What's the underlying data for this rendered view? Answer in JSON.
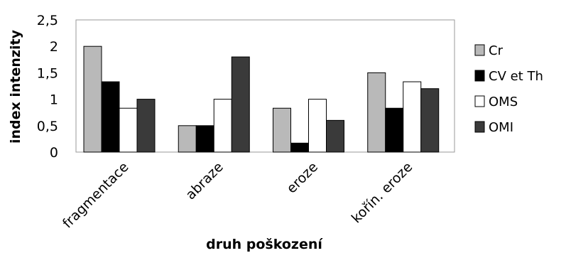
{
  "chart_data": {
    "type": "bar",
    "title": "",
    "xlabel": "druh poškození",
    "ylabel": "index intenzity",
    "ylim": [
      0,
      2.5
    ],
    "yticks": [
      "0",
      "0,5",
      "1",
      "1,5",
      "2",
      "2,5"
    ],
    "categories": [
      "fragmentace",
      "abraze",
      "eroze",
      "kořín. eroze"
    ],
    "series": [
      {
        "name": "Cr",
        "values": [
          2.0,
          0.5,
          0.83,
          1.5
        ],
        "color": "#b9b9b9"
      },
      {
        "name": "CV et Th",
        "values": [
          1.33,
          0.5,
          0.17,
          0.83
        ],
        "color": "#000000"
      },
      {
        "name": "OMS",
        "values": [
          0.83,
          1.0,
          1.0,
          1.33
        ],
        "color": "#ffffff"
      },
      {
        "name": "OMI",
        "values": [
          1.0,
          1.8,
          0.6,
          1.2
        ],
        "color": "#3a3a3a"
      }
    ],
    "grid": false,
    "legend": "right"
  }
}
